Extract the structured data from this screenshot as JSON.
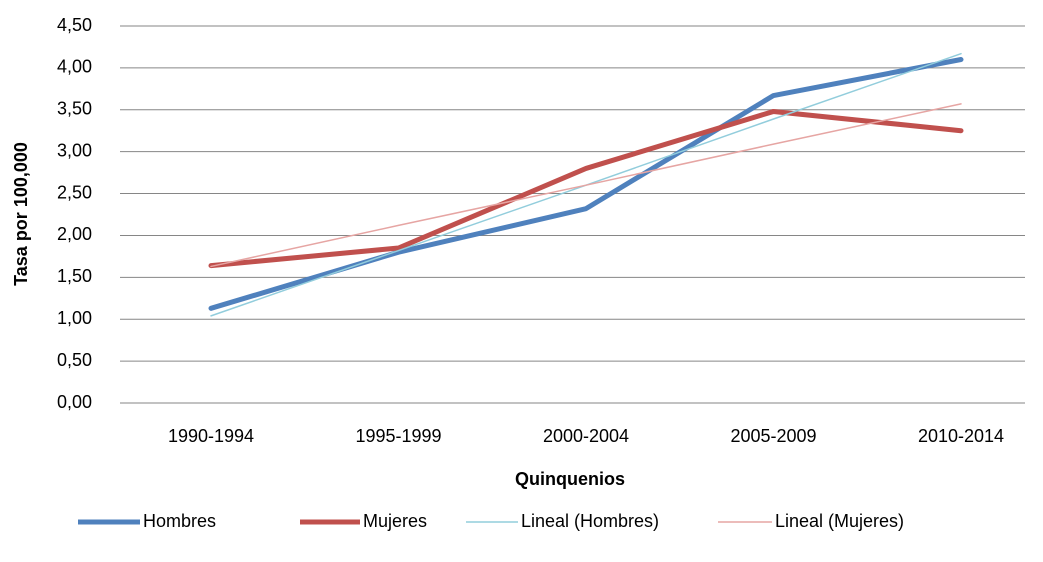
{
  "chart_data": {
    "type": "line",
    "x_label": "Quinquenios",
    "y_label": "Tasa por 100,000",
    "categories": [
      "1990-1994",
      "1995-1999",
      "2000-2004",
      "2005-2009",
      "2010-2014"
    ],
    "series": [
      {
        "name": "Hombres",
        "color": "#4f81bd",
        "width": 5,
        "values": [
          1.13,
          1.8,
          2.32,
          3.67,
          4.1
        ]
      },
      {
        "name": "Mujeres",
        "color": "#c0504d",
        "width": 5,
        "values": [
          1.64,
          1.85,
          2.8,
          3.48,
          3.25
        ]
      },
      {
        "name": "Lineal (Hombres)",
        "color": "#92cddc",
        "width": 1.5,
        "values": [
          1.04,
          1.82,
          2.6,
          3.39,
          4.17
        ]
      },
      {
        "name": "Lineal (Mujeres)",
        "color": "#e6a5a3",
        "width": 1.5,
        "values": [
          1.63,
          2.12,
          2.6,
          3.09,
          3.57
        ]
      }
    ],
    "ylim": [
      0,
      4.5
    ],
    "yticks": [
      {
        "value": 0,
        "label": "0,00"
      },
      {
        "value": 0.5,
        "label": "0,50"
      },
      {
        "value": 1,
        "label": "1,00"
      },
      {
        "value": 1.5,
        "label": "1,50"
      },
      {
        "value": 2,
        "label": "2,00"
      },
      {
        "value": 2.5,
        "label": "2,50"
      },
      {
        "value": 3,
        "label": "3,00"
      },
      {
        "value": 3.5,
        "label": "3,50"
      },
      {
        "value": 4,
        "label": "4,00"
      },
      {
        "value": 4.5,
        "label": "4,50"
      }
    ],
    "grid": true,
    "legend": "bottom"
  }
}
